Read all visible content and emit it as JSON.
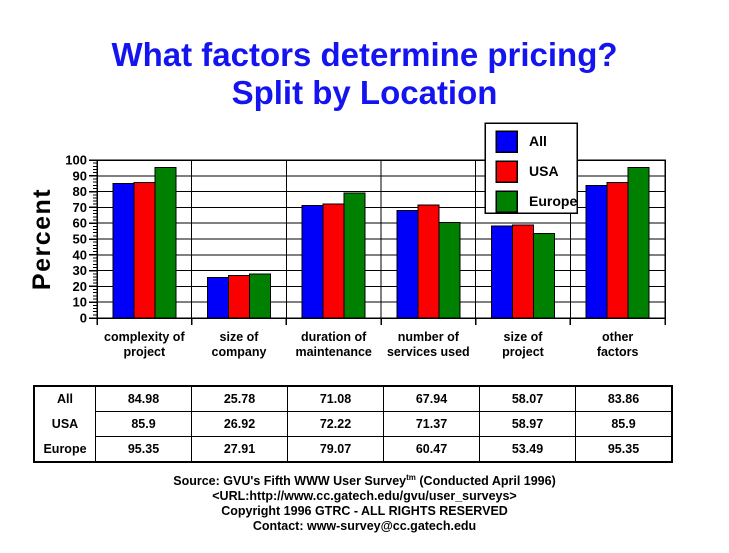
{
  "title": {
    "line1": "What factors determine pricing?",
    "line2": "Split by Location",
    "color": "#1414f0"
  },
  "chart_data": {
    "type": "bar",
    "title": "What factors determine pricing? Split by Location",
    "ylabel": "Percent",
    "xlabel": "",
    "ylim": [
      0,
      100
    ],
    "ytick_step": 10,
    "yminor_step": 2,
    "grid": true,
    "legend_position": "top-right",
    "categories": [
      {
        "line1": "complexity of",
        "line2": "project"
      },
      {
        "line1": "size of",
        "line2": "company"
      },
      {
        "line1": "duration of",
        "line2": "maintenance"
      },
      {
        "line1": "number of",
        "line2": "services used"
      },
      {
        "line1": "size of",
        "line2": "project"
      },
      {
        "line1": "other",
        "line2": "factors"
      }
    ],
    "series": [
      {
        "name": "All",
        "color": "#0000fa",
        "values": [
          84.98,
          25.78,
          71.08,
          67.94,
          58.07,
          83.86
        ]
      },
      {
        "name": "USA",
        "color": "#fb0000",
        "values": [
          85.9,
          26.92,
          72.22,
          71.37,
          58.97,
          85.9
        ]
      },
      {
        "name": "Europe",
        "color": "#008000",
        "values": [
          95.35,
          27.91,
          79.07,
          60.47,
          53.49,
          95.35
        ]
      }
    ]
  },
  "table": {
    "rows": [
      {
        "label": "All",
        "values": [
          "84.98",
          "25.78",
          "71.08",
          "67.94",
          "58.07",
          "83.86"
        ]
      },
      {
        "label": "USA",
        "values": [
          "85.9",
          "26.92",
          "72.22",
          "71.37",
          "58.97",
          "85.9"
        ]
      },
      {
        "label": "Europe",
        "values": [
          "95.35",
          "27.91",
          "79.07",
          "60.47",
          "53.49",
          "95.35"
        ]
      }
    ]
  },
  "footer": {
    "line1_pre": "Source: GVU's Fifth WWW User Survey",
    "line1_sup": "tm",
    "line1_post": " (Conducted April 1996)",
    "line2": "<URL:http://www.cc.gatech.edu/gvu/user_surveys>",
    "line3": "Copyright 1996 GTRC -  ALL RIGHTS RESERVED",
    "line4": "Contact: www-survey@cc.gatech.edu"
  }
}
